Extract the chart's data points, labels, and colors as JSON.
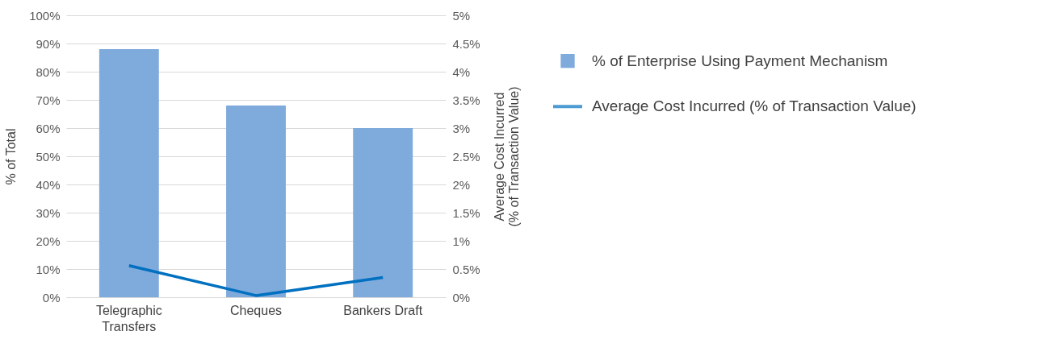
{
  "chart_data": {
    "type": "bar",
    "categories": [
      "Telegraphic Transfers",
      "Cheques",
      "Bankers Draft"
    ],
    "ylabel": "% of Total",
    "y2label": "Average Cost Incurred\n(% of Transaction Value)",
    "series": [
      {
        "name": "% of Enterprise Using Payment Mechanism",
        "color": "#7faadc",
        "values": [
          88,
          68,
          60
        ]
      },
      {
        "name": "Average Cost Incurred (% of Transaction Value)",
        "color": "#0070c0",
        "type": "line",
        "axis": "y2",
        "values": [
          0.56,
          0.03,
          0.35
        ]
      }
    ],
    "ylim": [
      0,
      100
    ],
    "yticks": [
      {
        "value": 0,
        "label": "0%"
      },
      {
        "value": 10,
        "label": "10%"
      },
      {
        "value": 20,
        "label": "20%"
      },
      {
        "value": 30,
        "label": "30%"
      },
      {
        "value": 40,
        "label": "40%"
      },
      {
        "value": 50,
        "label": "50%"
      },
      {
        "value": 60,
        "label": "60%"
      },
      {
        "value": 70,
        "label": "70%"
      },
      {
        "value": 80,
        "label": "80%"
      },
      {
        "value": 90,
        "label": "90%"
      },
      {
        "value": 100,
        "label": "100%"
      }
    ],
    "y2lim": [
      0,
      5
    ],
    "y2ticks": [
      {
        "value": 0,
        "label": "0%"
      },
      {
        "value": 0.5,
        "label": "0.5%"
      },
      {
        "value": 1,
        "label": "1%"
      },
      {
        "value": 1.5,
        "label": "1.5%"
      },
      {
        "value": 2,
        "label": "2%"
      },
      {
        "value": 2.5,
        "label": "2.5%"
      },
      {
        "value": 3,
        "label": "3%"
      },
      {
        "value": 3.5,
        "label": "3.5%"
      },
      {
        "value": 4,
        "label": "4%"
      },
      {
        "value": 4.5,
        "label": "4.5%"
      },
      {
        "value": 5,
        "label": "5%"
      }
    ],
    "grid": "y",
    "legend": "right"
  }
}
